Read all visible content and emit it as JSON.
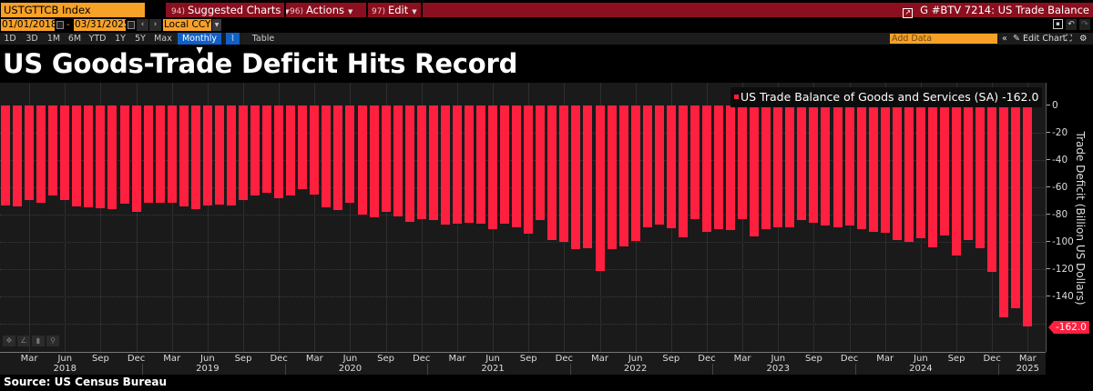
{
  "toolbar": {
    "ticker": "USTGTTCB Index",
    "menus": [
      {
        "num": "94)",
        "label": "Suggested Charts"
      },
      {
        "num": "96)",
        "label": "Actions"
      },
      {
        "num": "97)",
        "label": "Edit"
      }
    ],
    "window_title": "G #BTV 7214: US Trade Balance",
    "start_date": "01/01/2018",
    "date_sep": "-",
    "end_date": "03/31/2025",
    "currency": "Local CCY",
    "periods": [
      "1D",
      "3D",
      "1M",
      "6M",
      "YTD",
      "1Y",
      "5Y",
      "Max"
    ],
    "frequency": "Monthly ▼",
    "table_label": "Table",
    "add_data_placeholder": "Add Data",
    "collapse_label": "«",
    "edit_chart_label": "✎ Edit Chart"
  },
  "title": "US Goods-Trade Deficit Hits Record",
  "source": "Source: US Census Bureau",
  "legend": {
    "label": "US Trade Balance of Goods and Services (SA) -162.0",
    "color": "#ff1f3f"
  },
  "last_value_label": "-162.0",
  "colors": {
    "bar": "#ff1f3f",
    "toolbar_red": "#8b0f1e",
    "input_orange": "#f7a128",
    "accent_blue": "#1060c8"
  },
  "chart_data": {
    "type": "bar",
    "title": "US Goods-Trade Deficit Hits Record",
    "xlabel": "",
    "ylabel": "Trade Deficit (Billion US Dollars)",
    "ylim": [
      -170,
      15
    ],
    "yticks": [
      0,
      -20,
      -40,
      -60,
      -80,
      -100,
      -120,
      -140
    ],
    "y_axis_side": "right",
    "grid": true,
    "legend_position": "top-right",
    "x_start": "2018-01",
    "x_end": "2025-03",
    "frequency": "monthly",
    "xtick_months": [
      "Mar",
      "Jun",
      "Sep",
      "Dec"
    ],
    "xtick_years": [
      "2018",
      "2019",
      "2020",
      "2021",
      "2022",
      "2023",
      "2024",
      "2025"
    ],
    "series": [
      {
        "name": "US Trade Balance of Goods and Services (SA)",
        "last_value": -162.0,
        "values": [
          -73,
          -74,
          -69,
          -71,
          -66,
          -69,
          -74,
          -74.5,
          -75,
          -76,
          -72,
          -78,
          -71,
          -71,
          -71,
          -74,
          -76,
          -73,
          -72.5,
          -73,
          -69,
          -66,
          -64,
          -68,
          -66,
          -61,
          -65,
          -74.5,
          -76.5,
          -71,
          -80,
          -82,
          -78,
          -81,
          -85,
          -83,
          -84,
          -87,
          -86.5,
          -86,
          -86.5,
          -90.5,
          -86.5,
          -89,
          -94,
          -84,
          -98.5,
          -100,
          -105,
          -104.5,
          -121.5,
          -105.5,
          -103,
          -99.5,
          -89,
          -87,
          -90,
          -96.5,
          -83,
          -92.5,
          -90.5,
          -91.5,
          -83,
          -96,
          -90.5,
          -89,
          -89.5,
          -84,
          -86,
          -88,
          -89,
          -88,
          -90.5,
          -92.5,
          -93,
          -98.5,
          -100,
          -97,
          -104,
          -95.5,
          -110,
          -98.5,
          -104.5,
          -122,
          -155.5,
          -148.5,
          -162
        ]
      }
    ]
  }
}
